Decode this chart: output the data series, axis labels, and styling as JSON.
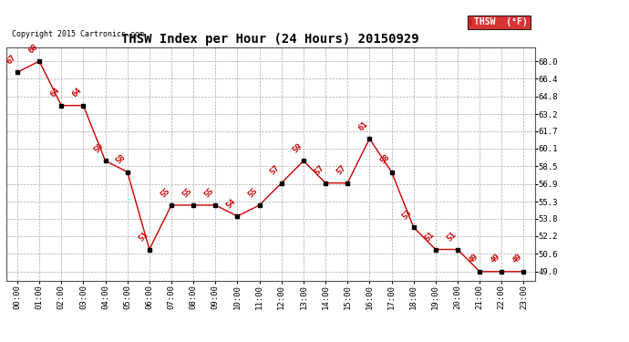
{
  "title": "THSW Index per Hour (24 Hours) 20150929",
  "copyright_text": "Copyright 2015 Cartronics.com",
  "legend_label": "THSW  (°F)",
  "hours": [
    0,
    1,
    2,
    3,
    4,
    5,
    6,
    7,
    8,
    9,
    10,
    11,
    12,
    13,
    14,
    15,
    16,
    17,
    18,
    19,
    20,
    21,
    22,
    23
  ],
  "values": [
    67,
    68,
    64,
    64,
    59,
    58,
    51,
    55,
    55,
    55,
    54,
    55,
    57,
    59,
    57,
    57,
    61,
    58,
    53,
    51,
    51,
    49,
    49,
    49
  ],
  "line_color": "#cc0000",
  "marker_color": "#000000",
  "label_color": "#cc0000",
  "bg_color": "#ffffff",
  "grid_color": "#aaaaaa",
  "ylim_min": 48.2,
  "ylim_max": 69.2,
  "yticks": [
    49.0,
    50.6,
    52.2,
    53.8,
    55.3,
    56.9,
    58.5,
    60.1,
    61.7,
    63.2,
    64.8,
    66.4,
    68.0
  ],
  "legend_bg": "#cc0000",
  "legend_text_color": "#ffffff",
  "title_fontsize": 10,
  "tick_fontsize": 6.5,
  "label_fontsize": 6.5,
  "copyright_fontsize": 6
}
